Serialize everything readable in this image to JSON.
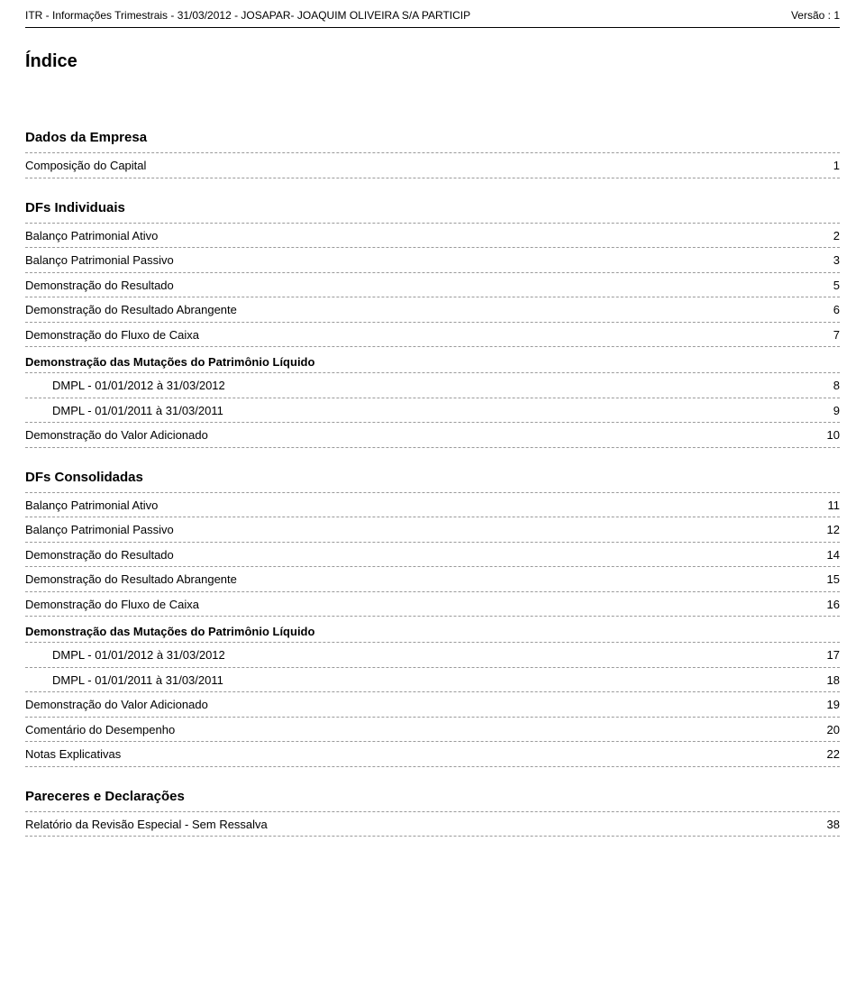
{
  "header": {
    "left": "ITR - Informações Trimestrais - 31/03/2012 - JOSAPAR- JOAQUIM OLIVEIRA S/A PARTICIP",
    "right": "Versão : 1"
  },
  "title": "Índice",
  "sections": [
    {
      "kind": "section",
      "label": "Dados da Empresa",
      "items": [
        {
          "kind": "entry",
          "label": "Composição do Capital",
          "page": "1"
        }
      ]
    },
    {
      "kind": "section",
      "label": "DFs Individuais",
      "items": [
        {
          "kind": "entry",
          "label": "Balanço Patrimonial Ativo",
          "page": "2"
        },
        {
          "kind": "entry",
          "label": "Balanço Patrimonial Passivo",
          "page": "3"
        },
        {
          "kind": "entry",
          "label": "Demonstração do Resultado",
          "page": "5"
        },
        {
          "kind": "entry",
          "label": "Demonstração do Resultado Abrangente",
          "page": "6"
        },
        {
          "kind": "entry",
          "label": "Demonstração do Fluxo de Caixa",
          "page": "7"
        },
        {
          "kind": "subsection",
          "label": "Demonstração das Mutações do Patrimônio Líquido"
        },
        {
          "kind": "entry",
          "indent": true,
          "label": "DMPL - 01/01/2012 à 31/03/2012",
          "page": "8"
        },
        {
          "kind": "entry",
          "indent": true,
          "label": "DMPL - 01/01/2011 à 31/03/2011",
          "page": "9"
        },
        {
          "kind": "entry",
          "label": "Demonstração do Valor Adicionado",
          "page": "10"
        }
      ]
    },
    {
      "kind": "section",
      "label": "DFs Consolidadas",
      "items": [
        {
          "kind": "entry",
          "label": "Balanço Patrimonial Ativo",
          "page": "11"
        },
        {
          "kind": "entry",
          "label": "Balanço Patrimonial Passivo",
          "page": "12"
        },
        {
          "kind": "entry",
          "label": "Demonstração do Resultado",
          "page": "14"
        },
        {
          "kind": "entry",
          "label": "Demonstração do Resultado Abrangente",
          "page": "15"
        },
        {
          "kind": "entry",
          "label": "Demonstração do Fluxo de Caixa",
          "page": "16"
        },
        {
          "kind": "subsection",
          "label": "Demonstração das Mutações do Patrimônio Líquido"
        },
        {
          "kind": "entry",
          "indent": true,
          "label": "DMPL - 01/01/2012 à 31/03/2012",
          "page": "17"
        },
        {
          "kind": "entry",
          "indent": true,
          "label": "DMPL - 01/01/2011 à 31/03/2011",
          "page": "18"
        },
        {
          "kind": "entry",
          "label": "Demonstração do Valor Adicionado",
          "page": "19"
        },
        {
          "kind": "entry",
          "label": "Comentário do Desempenho",
          "page": "20"
        },
        {
          "kind": "entry",
          "label": "Notas Explicativas",
          "page": "22"
        }
      ]
    },
    {
      "kind": "section",
      "label": "Pareceres e Declarações",
      "items": [
        {
          "kind": "entry",
          "label": "Relatório da Revisão Especial - Sem Ressalva",
          "page": "38"
        }
      ]
    }
  ],
  "style": {
    "text_color": "#000000",
    "background_color": "#ffffff",
    "dash_color": "#9a9a9a",
    "header_fontsize": 12,
    "title_fontsize": 20,
    "section_fontsize": 15,
    "entry_fontsize": 13
  }
}
